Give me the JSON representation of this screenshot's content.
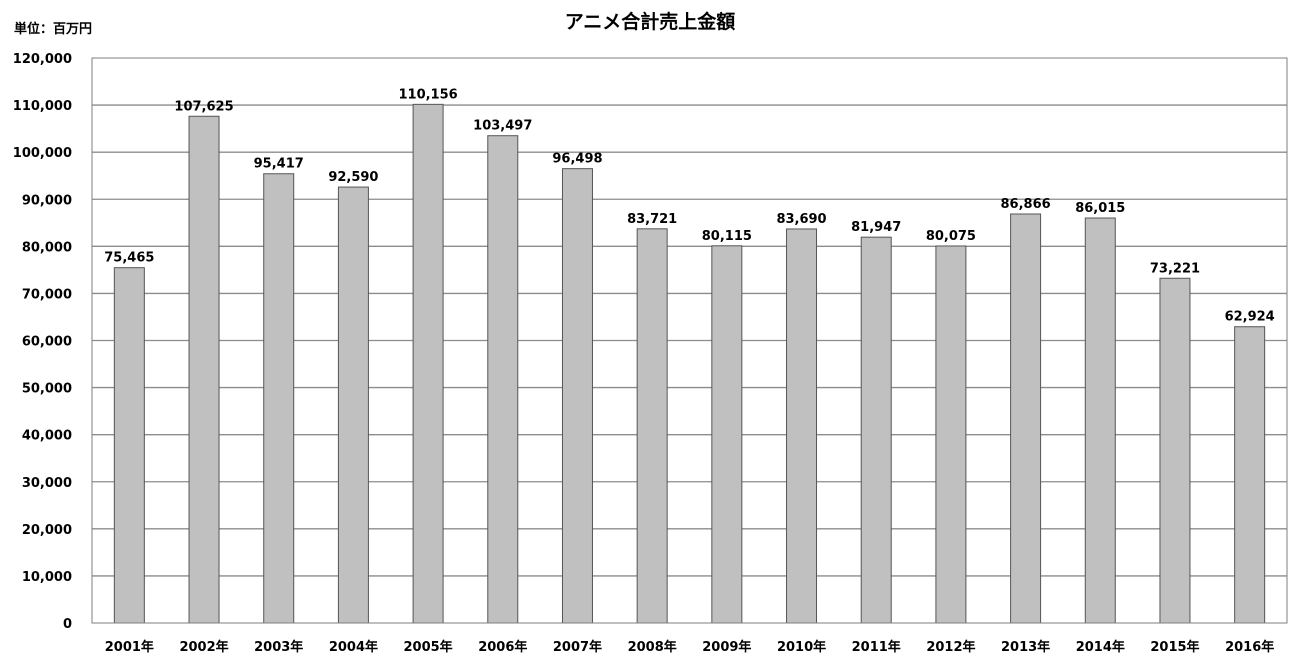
{
  "chart_data": {
    "type": "bar",
    "title": "アニメ合計売上金額",
    "unit_label": "単位：百万円",
    "categories": [
      "2001年",
      "2002年",
      "2003年",
      "2004年",
      "2005年",
      "2006年",
      "2007年",
      "2008年",
      "2009年",
      "2010年",
      "2011年",
      "2012年",
      "2013年",
      "2014年",
      "2015年",
      "2016年"
    ],
    "values": [
      75465,
      107625,
      95417,
      92590,
      110156,
      103497,
      96498,
      83721,
      80115,
      83690,
      81947,
      80075,
      86866,
      86015,
      73221,
      62924
    ],
    "value_labels": [
      "75,465",
      "107,625",
      "95,417",
      "92,590",
      "110,156",
      "103,497",
      "96,498",
      "83,721",
      "80,115",
      "83,690",
      "81,947",
      "80,075",
      "86,866",
      "86,015",
      "73,221",
      "62,924"
    ],
    "y_ticks": [
      0,
      10000,
      20000,
      30000,
      40000,
      50000,
      60000,
      70000,
      80000,
      90000,
      100000,
      110000,
      120000
    ],
    "y_tick_labels": [
      "0",
      "10,000",
      "20,000",
      "30,000",
      "40,000",
      "50,000",
      "60,000",
      "70,000",
      "80,000",
      "90,000",
      "100,000",
      "110,000",
      "120,000"
    ],
    "ylim": [
      0,
      120000
    ],
    "grid": true,
    "legend": "none",
    "colors": {
      "bar_fill": "#c0c0c0",
      "bar_stroke": "#555555",
      "grid": "#8c8c8c",
      "frame": "#7f7f7f"
    }
  }
}
